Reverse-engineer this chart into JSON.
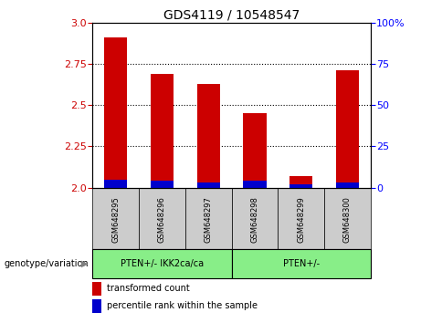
{
  "title": "GDS4119 / 10548547",
  "samples": [
    "GSM648295",
    "GSM648296",
    "GSM648297",
    "GSM648298",
    "GSM648299",
    "GSM648300"
  ],
  "transformed_counts": [
    2.91,
    2.69,
    2.63,
    2.45,
    2.07,
    2.71
  ],
  "percentile_ranks": [
    5,
    4,
    3,
    4,
    2,
    3
  ],
  "ylim": [
    2.0,
    3.0
  ],
  "yticks": [
    2.0,
    2.25,
    2.5,
    2.75,
    3.0
  ],
  "right_yticks": [
    0,
    25,
    50,
    75,
    100
  ],
  "bar_width": 0.5,
  "red_color": "#cc0000",
  "blue_color": "#0000cc",
  "group1_label": "PTEN+/- IKK2ca/ca",
  "group2_label": "PTEN+/-",
  "group1_indices": [
    0,
    1,
    2
  ],
  "group2_indices": [
    3,
    4,
    5
  ],
  "group_bg_color": "#88ee88",
  "sample_bg_color": "#cccccc",
  "legend_red_label": "transformed count",
  "legend_blue_label": "percentile rank within the sample",
  "genotype_label": "genotype/variation",
  "base_value": 2.0,
  "grid_color": "black",
  "grid_linestyle": "dotted",
  "grid_linewidth": 0.8
}
